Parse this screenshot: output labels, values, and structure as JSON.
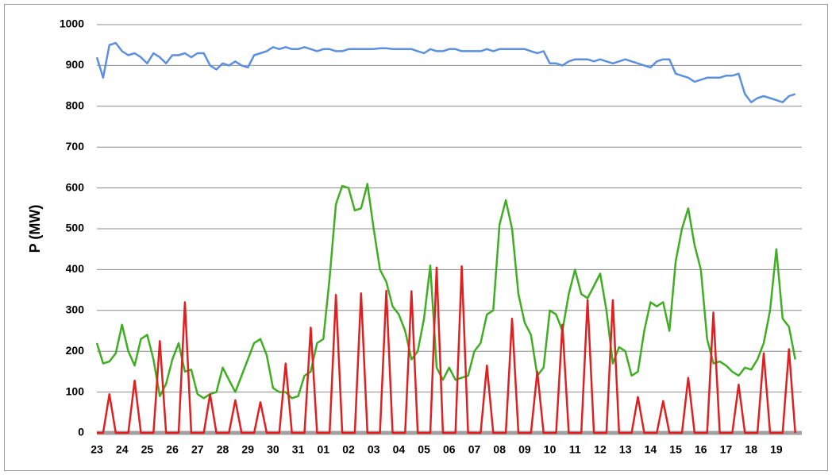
{
  "chart_data": {
    "type": "line",
    "ylabel": "P (MW)",
    "ylim": [
      0,
      1000
    ],
    "yticks": [
      0,
      100,
      200,
      300,
      400,
      500,
      600,
      700,
      800,
      900,
      1000
    ],
    "grid": true,
    "categories": [
      "23",
      null,
      null,
      null,
      "24",
      null,
      null,
      null,
      "25",
      null,
      null,
      null,
      "26",
      null,
      null,
      null,
      "27",
      null,
      null,
      null,
      "28",
      null,
      null,
      null,
      "29",
      null,
      null,
      null,
      "30",
      null,
      null,
      null,
      "31",
      null,
      null,
      null,
      "01",
      null,
      null,
      null,
      "02",
      null,
      null,
      null,
      "03",
      null,
      null,
      null,
      "04",
      null,
      null,
      null,
      "05",
      null,
      null,
      null,
      "06",
      null,
      null,
      null,
      "07",
      null,
      null,
      null,
      "08",
      null,
      null,
      null,
      "09",
      null,
      null,
      null,
      "10",
      null,
      null,
      null,
      "11",
      null,
      null,
      null,
      "12",
      null,
      null,
      null,
      "13",
      null,
      null,
      null,
      "14",
      null,
      null,
      null,
      "15",
      null,
      null,
      null,
      "16",
      null,
      null,
      null,
      "17",
      null,
      null,
      null,
      "18",
      null,
      null,
      null,
      "19",
      null,
      null,
      null
    ],
    "series": [
      {
        "color": "#5b8fe0",
        "values": [
          920,
          870,
          950,
          955,
          935,
          925,
          930,
          920,
          905,
          930,
          920,
          905,
          925,
          925,
          930,
          920,
          930,
          930,
          900,
          890,
          905,
          900,
          910,
          900,
          895,
          925,
          930,
          935,
          945,
          940,
          945,
          940,
          940,
          945,
          940,
          935,
          940,
          940,
          935,
          935,
          940,
          940,
          940,
          940,
          940,
          942,
          942,
          940,
          940,
          940,
          940,
          935,
          930,
          940,
          935,
          935,
          940,
          940,
          935,
          935,
          935,
          935,
          940,
          935,
          940,
          940,
          940,
          940,
          940,
          935,
          930,
          935,
          905,
          905,
          900,
          910,
          915,
          915,
          915,
          910,
          915,
          910,
          905,
          910,
          915,
          910,
          905,
          900,
          895,
          910,
          915,
          915,
          880,
          875,
          870,
          860,
          865,
          870,
          870,
          870,
          875,
          875,
          880,
          830,
          810,
          820,
          825,
          820,
          815,
          810,
          825,
          830
        ]
      },
      {
        "color": "#3fae22",
        "values": [
          220,
          170,
          175,
          195,
          265,
          200,
          165,
          230,
          240,
          180,
          90,
          120,
          180,
          220,
          150,
          155,
          95,
          85,
          95,
          100,
          160,
          130,
          100,
          140,
          180,
          220,
          230,
          190,
          110,
          100,
          100,
          85,
          90,
          140,
          150,
          220,
          230,
          380,
          560,
          605,
          600,
          545,
          550,
          610,
          500,
          400,
          370,
          310,
          290,
          250,
          180,
          200,
          280,
          410,
          160,
          130,
          160,
          130,
          135,
          140,
          200,
          220,
          290,
          300,
          510,
          570,
          500,
          340,
          270,
          240,
          140,
          160,
          300,
          290,
          250,
          340,
          400,
          340,
          330,
          360,
          390,
          300,
          170,
          210,
          200,
          140,
          150,
          250,
          320,
          310,
          320,
          250,
          420,
          500,
          550,
          460,
          400,
          230,
          170,
          175,
          165,
          150,
          140,
          160,
          155,
          180,
          220,
          300,
          450,
          280,
          260,
          180
        ]
      },
      {
        "color": "#e02020",
        "values": [
          0,
          0,
          95,
          0,
          0,
          0,
          128,
          0,
          0,
          0,
          225,
          0,
          0,
          0,
          320,
          0,
          0,
          0,
          95,
          0,
          0,
          0,
          80,
          0,
          0,
          0,
          75,
          0,
          0,
          0,
          170,
          0,
          0,
          0,
          258,
          0,
          0,
          0,
          338,
          0,
          0,
          0,
          342,
          0,
          0,
          0,
          348,
          0,
          0,
          0,
          347,
          0,
          0,
          0,
          405,
          0,
          0,
          0,
          408,
          0,
          0,
          0,
          165,
          0,
          0,
          0,
          280,
          0,
          0,
          0,
          150,
          0,
          0,
          0,
          265,
          0,
          0,
          0,
          325,
          0,
          0,
          0,
          325,
          0,
          0,
          0,
          88,
          0,
          0,
          0,
          78,
          0,
          0,
          0,
          135,
          0,
          0,
          0,
          295,
          0,
          0,
          0,
          118,
          0,
          0,
          0,
          195,
          0,
          0,
          0,
          205,
          0
        ]
      }
    ]
  }
}
